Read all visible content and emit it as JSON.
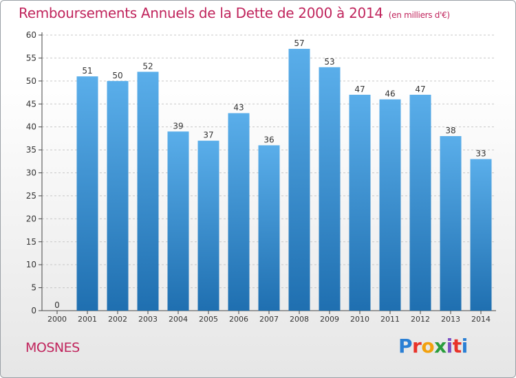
{
  "header": {
    "title": "Remboursements Annuels de la Dette de 2000 à 2014",
    "unit": "(en milliers d'€)"
  },
  "footer": {
    "commune": "MOSNES",
    "logo_text": "Proxiti"
  },
  "colors": {
    "title": "#c0245c",
    "bar_top": "#5aaeea",
    "bar_bottom": "#1f6fb0"
  },
  "chart_data": {
    "type": "bar",
    "title": "Remboursements Annuels de la Dette de 2000 à 2014",
    "xlabel": "",
    "ylabel": "",
    "categories": [
      "2000",
      "2001",
      "2002",
      "2003",
      "2004",
      "2005",
      "2006",
      "2007",
      "2008",
      "2009",
      "2010",
      "2011",
      "2012",
      "2013",
      "2014"
    ],
    "values": [
      0,
      51,
      50,
      52,
      39,
      37,
      43,
      36,
      57,
      53,
      47,
      46,
      47,
      38,
      33
    ],
    "ylim": [
      0,
      60
    ],
    "yticks": [
      0,
      5,
      10,
      15,
      20,
      25,
      30,
      35,
      40,
      45,
      50,
      55,
      60
    ],
    "grid": true
  }
}
